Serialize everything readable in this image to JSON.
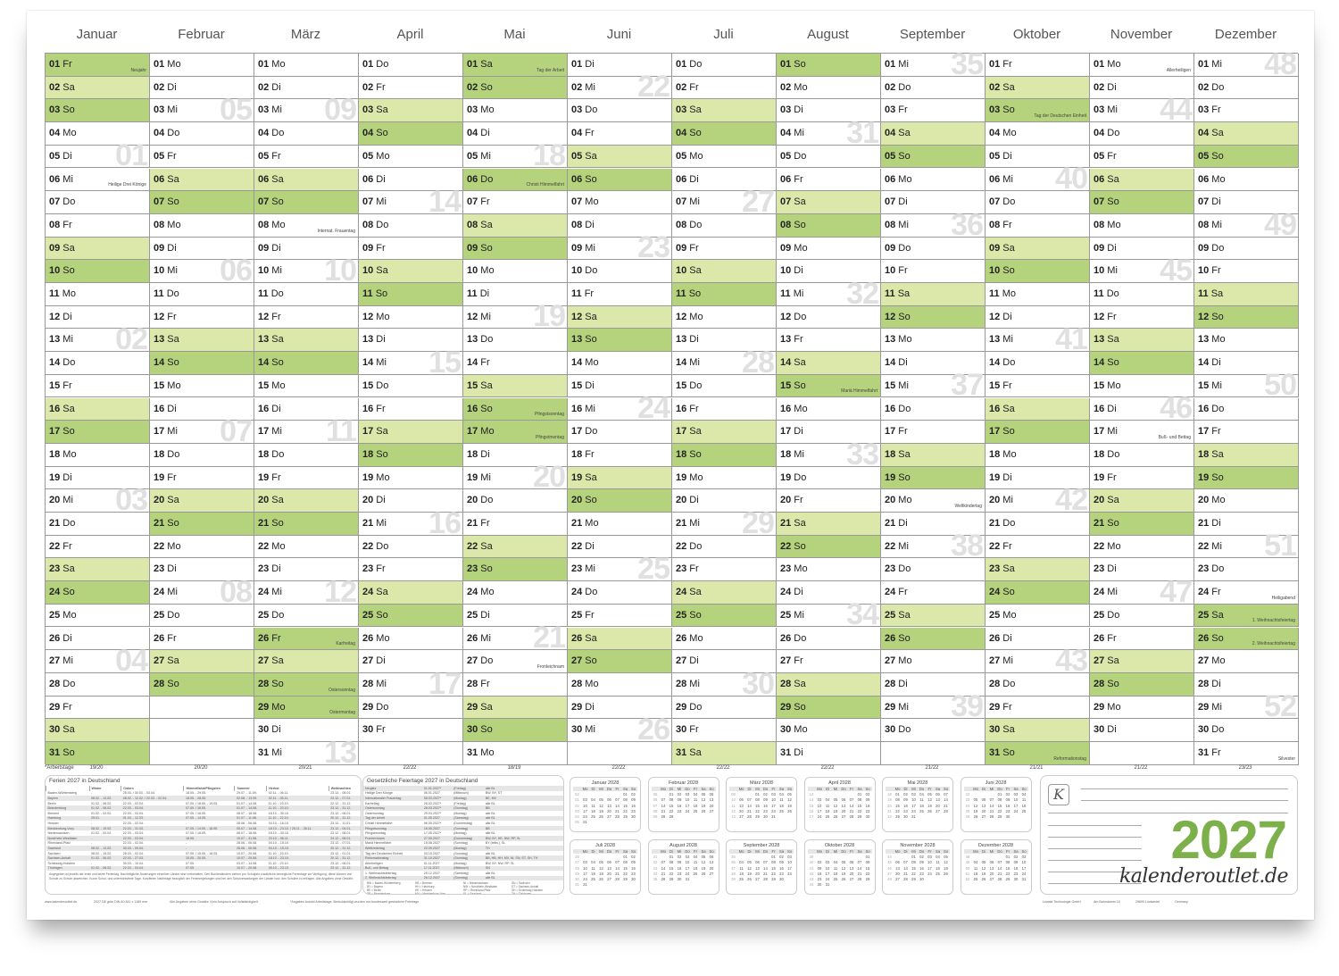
{
  "year": 2027,
  "colors": {
    "saturday": "#dbe8aa",
    "sunday_holiday": "#b5d37c",
    "accent": "#7db04a",
    "week_number": "#e0e0e0"
  },
  "weekday_abbr": [
    "So",
    "Mo",
    "Di",
    "Mi",
    "Do",
    "Fr",
    "Sa"
  ],
  "months": [
    {
      "name": "Januar",
      "holidays": {
        "1": {
          "label": "Neujahr",
          "green": true
        },
        "6": {
          "label": "Heilige Drei Könige",
          "green": false
        }
      }
    },
    {
      "name": "Februar",
      "holidays": {}
    },
    {
      "name": "März",
      "holidays": {
        "8": {
          "label": "Internat. Frauentag",
          "green": false
        },
        "26": {
          "label": "Karfreitag",
          "green": true
        },
        "28": {
          "label": "Ostersonntag",
          "green": true
        },
        "29": {
          "label": "Ostermontag",
          "green": true
        }
      }
    },
    {
      "name": "April",
      "holidays": {}
    },
    {
      "name": "Mai",
      "holidays": {
        "1": {
          "label": "Tag der Arbeit",
          "green": true
        },
        "6": {
          "label": "Christi Himmelfahrt",
          "green": true
        },
        "16": {
          "label": "Pfingstsonntag",
          "green": true
        },
        "17": {
          "label": "Pfingstmontag",
          "green": true
        },
        "27": {
          "label": "Fronleichnam",
          "green": false
        }
      }
    },
    {
      "name": "Juni",
      "holidays": {}
    },
    {
      "name": "Juli",
      "holidays": {}
    },
    {
      "name": "August",
      "holidays": {
        "15": {
          "label": "Mariä Himmelfahrt",
          "green": true
        }
      }
    },
    {
      "name": "September",
      "holidays": {
        "20": {
          "label": "Weltkindertag",
          "green": false
        }
      }
    },
    {
      "name": "Oktober",
      "holidays": {
        "3": {
          "label": "Tag der Deutschen Einheit",
          "green": true
        },
        "31": {
          "label": "Reformationstag",
          "green": true
        }
      }
    },
    {
      "name": "November",
      "holidays": {
        "1": {
          "label": "Allerheiligen",
          "green": false
        },
        "17": {
          "label": "Buß- und Bettag",
          "green": false
        }
      }
    },
    {
      "name": "Dezember",
      "holidays": {
        "24": {
          "label": "Heiligabend",
          "green": false
        },
        "25": {
          "label": "1. Weihnachtsfeiertag",
          "green": true
        },
        "26": {
          "label": "2. Weihnachtsfeiertag",
          "green": true
        },
        "31": {
          "label": "Silvester",
          "green": false
        }
      }
    }
  ],
  "arbeitstage": {
    "label": "*Arbeitstage",
    "values": [
      "19/20",
      "20/20",
      "20/21",
      "22/22",
      "18/19",
      "22/22",
      "22/22",
      "22/22",
      "21/22",
      "21/21",
      "21/22",
      "23/23"
    ]
  },
  "ferien": {
    "title": "Ferien 2027 in Deutschland",
    "headers": [
      "",
      "Winter",
      "Ostern",
      "Himmelfahrt/Pfingsten",
      "Sommer",
      "Herbst",
      "Weihnachten"
    ],
    "rows": [
      [
        "Baden-Württemberg",
        "-",
        "25.03. / 30.03. - 03.04.",
        "18.05. - 29.05.",
        "29.07. - 11.09.",
        "02.11. - 06.11.",
        "23.12. - 08.01."
      ],
      [
        "Bayern",
        "08.02. - 12.02.",
        "08.02. - 12.02. / 22.03. - 02.04.",
        "18.05. - 28.05.",
        "02.08. - 13.09.",
        "02.11. - 05.11.",
        "24.12. - 07.01."
      ],
      [
        "Berlin",
        "01.02. - 06.02.",
        "22.03. - 02.04.",
        "07.05. / 18.05. - 19.05.",
        "01.07. - 14.08.",
        "11.10. - 23.10.",
        "22.12. - 31.12."
      ],
      [
        "Brandenburg",
        "01.02. - 06.02.",
        "22.03. - 03.04.",
        "07.05. / 18.05.",
        "01.07. - 14.08.",
        "11.10. - 23.10.",
        "23.12. - 31.12."
      ],
      [
        "Bremen",
        "01.02. - 02.02.",
        "22.03. - 03.04.",
        "07.05. / 18.05.",
        "08.07. - 18.08.",
        "18.10. - 30.10.",
        "23.12. - 08.01."
      ],
      [
        "Hamburg",
        "29.01.",
        "01.03. - 12.03.",
        "07.05. - 14.05.",
        "01.07. - 11.08.",
        "11.10. - 22.10.",
        "20.12. - 31.12."
      ],
      [
        "Hessen",
        "-",
        "22.03. - 02.04.",
        "-",
        "28.06. - 06.08.",
        "04.10. - 16.10.",
        "23.12. - 11.01."
      ],
      [
        "Mecklenburg-Vorp.",
        "08.02. - 19.02.",
        "22.03. - 31.03.",
        "07.05. / 14.05. - 18.05.",
        "05.07. - 14.08.",
        "18.10. - 23.10. / 25.11. - 26.11.",
        "23.12. - 04.01."
      ],
      [
        "Niedersachsen",
        "01.02. - 02.02.",
        "22.03. - 03.04.",
        "07.05. / 18.05.",
        "08.07. - 18.08.",
        "18.10. - 30.10.",
        "23.12. - 08.01."
      ],
      [
        "Nordrhein-Westfalen",
        "-",
        "22.03. - 03.04.",
        "18.05.",
        "19.07. - 31.08.",
        "23.10. - 06.11.",
        "24.12. - 06.01."
      ],
      [
        "Rheinland-Pfalz",
        "-",
        "22.03. - 02.04.",
        "-",
        "28.06. - 06.08.",
        "04.10. - 15.10.",
        "23.12. - 07.01."
      ],
      [
        "Saarland",
        "08.02. - 12.02.",
        "30.03. - 09.04.",
        "-",
        "28.06. - 06.08.",
        "04.10. - 15.10.",
        "20.12. - 31.12."
      ],
      [
        "Sachsen",
        "08.02. - 19.02.",
        "26.03. - 02.04.",
        "07.05. / 15.05. - 18.05.",
        "10.07. - 20.08.",
        "11.10. - 23.10.",
        "23.12. - 01.01."
      ],
      [
        "Sachsen-Anhalt",
        "01.02. - 06.02.",
        "22.03. - 27.03.",
        "15.05. - 20.05.",
        "10.07. - 20.08.",
        "18.10. - 23.10.",
        "20.12. - 31.12."
      ],
      [
        "Schleswig-Holstein",
        "-",
        "30.03. - 10.04.",
        "07.05.",
        "03.07. - 14.08.",
        "11.10. - 23.10.",
        "23.12. - 08.01."
      ],
      [
        "Thüringen",
        "01.02. - 06.02.",
        "22.03. - 03.04.",
        "07.05.",
        "10.07. - 20.08.",
        "09.10. - 23.10.",
        "23.12. - 31.12."
      ]
    ],
    "note": "Angegeben ist jeweils der erste und letzte Ferientag. Nachträgliche Änderungen einzelner Länder sind vorbehalten. Den Bundesländern stehen pro Schuljahr zusätzliche bewegliche Ferientage zur Verfügung, diese können von Schule zu Schule abweichen. Kurze Schul- und unterrichtsfreie Tage, Kurzferien Nachträge bezüglich der Ferienregelungen sind bei den Schulverwaltungen der Länder bzw. den Schulen zu erfragen. Alle Angaben ohne Gewähr."
  },
  "feiertage": {
    "title": "Gesetzliche Feiertage 2027 in Deutschland",
    "rows": [
      [
        "Neujahr",
        "01.01.2027*",
        "(Freitag)",
        "alle BL"
      ],
      [
        "Heilige Drei Könige",
        "06.01.2027",
        "(Mittwoch)",
        "BW, BY, ST"
      ],
      [
        "Internationaler Frauentag",
        "08.03.2027*",
        "(Montag)",
        "BE, MV"
      ],
      [
        "Karfreitag",
        "26.03.2027*",
        "(Freitag)",
        "alle BL"
      ],
      [
        "Ostersonntag",
        "28.03.2027*",
        "(Sonntag)",
        "BB"
      ],
      [
        "Ostermontag",
        "29.03.2027*",
        "(Montag)",
        "alle BL"
      ],
      [
        "Tag der Arbeit",
        "01.05.2027",
        "(Samstag)",
        "alle BL"
      ],
      [
        "Christi Himmelfahrt",
        "06.05.2027*",
        "(Donnerstag)",
        "alle BL"
      ],
      [
        "Pfingstsonntag",
        "16.05.2027",
        "(Sonntag)",
        "BB"
      ],
      [
        "Pfingstmontag",
        "17.05.2027*",
        "(Montag)",
        "alle BL"
      ],
      [
        "Fronleichnam",
        "27.05.2027",
        "(Donnerstag)",
        "BW, BY, HE, NW, RP, SL"
      ],
      [
        "Mariä Himmelfahrt",
        "15.08.2027",
        "(Sonntag)",
        "BY (teilw.), SL"
      ],
      [
        "Weltkindertag",
        "20.09.2027",
        "(Montag)",
        "TH"
      ],
      [
        "Tag der Deutschen Einheit",
        "03.10.2027",
        "(Sonntag)",
        "alle BL"
      ],
      [
        "Reformationstag",
        "31.10.2027",
        "(Sonntag)",
        "BB, HB, HH, MV, NI, SN, ST, SH, TH"
      ],
      [
        "Allerheiligen",
        "01.11.2027",
        "(Montag)",
        "BW, BY, NW, RP, SL"
      ],
      [
        "Buß- und Bettag",
        "17.11.2027",
        "(Mittwoch)",
        "SN"
      ],
      [
        "1. Weihnachtsfeiertag",
        "25.12.2027",
        "(Samstag)",
        "alle BL"
      ],
      [
        "2. Weihnachtsfeiertag",
        "26.12.2027",
        "(Sonntag)",
        "alle BL"
      ]
    ],
    "legend": [
      "BW = Baden-Württemberg",
      "HB = Bremen",
      "NI = Niedersachsen",
      "SN = Sachsen",
      "BY = Bayern",
      "HH = Hamburg",
      "NW = Nordrhein-Westfalen",
      "ST = Sachsen-Anhalt",
      "BE = Berlin",
      "HE = Hessen",
      "RP = Rheinland-Pfalz",
      "SH = Schleswig-Holstein",
      "BB = Brandenburg",
      "MV = Mecklenburg-Vorp.",
      "SL = Saarland",
      "TH = Thüringen"
    ]
  },
  "next_year": {
    "year": 2028,
    "weekday_header": [
      "Mo",
      "Di",
      "Mi",
      "Do",
      "Fr",
      "Sa",
      "So"
    ],
    "months": [
      "Januar 2028",
      "Februar 2028",
      "März 2028",
      "April 2028",
      "Mai 2028",
      "Juni 2028",
      "Juli 2028",
      "August 2028",
      "September 2028",
      "Oktober 2028",
      "November 2028",
      "Dezember 2028"
    ]
  },
  "branding": {
    "logo_letter": "K",
    "year": "2027",
    "brand": "kalenderoutlet.de"
  },
  "footer": {
    "website": "www.kalenderoutlet.de",
    "product": "2027 DE grün DIN A0 841 x 1189 mm",
    "disclaimer": "Alle Angaben ohne Gewähr. Kein Anspruch auf Vollständigkeit.",
    "workdays_note": "*Angaben Anzahl Arbeitstage: Berücksichtigt wurden nur bundesweit gesetzliche Feiertage",
    "company": "Lewald Technologie GmbH",
    "street": "Am Bahndamm 16",
    "city": "29690 Lindwedel",
    "country": "Germany"
  }
}
